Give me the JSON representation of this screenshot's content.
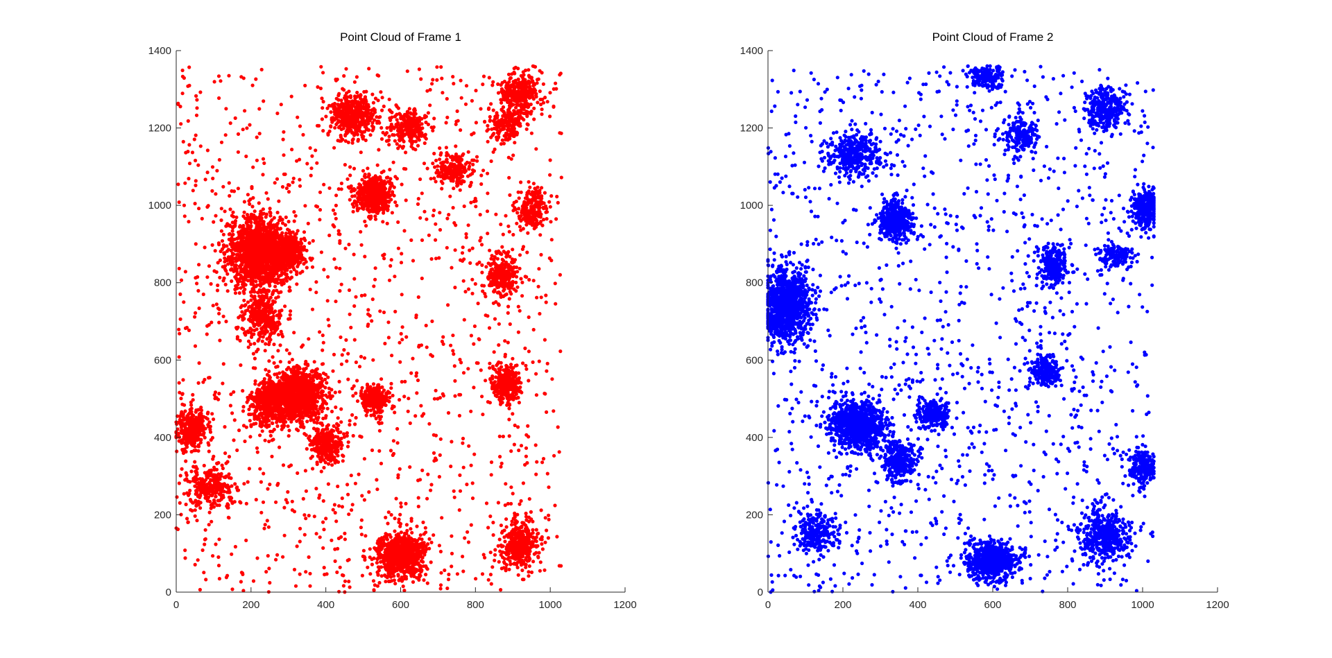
{
  "figure": {
    "background": "#ffffff"
  },
  "chart_data": [
    {
      "type": "scatter",
      "title": "Point Cloud of Frame 1",
      "xlabel": "",
      "ylabel": "",
      "xlim": [
        0,
        1200
      ],
      "ylim": [
        0,
        1400
      ],
      "xticks": [
        0,
        200,
        400,
        600,
        800,
        1000,
        1200
      ],
      "yticks": [
        0,
        200,
        400,
        600,
        800,
        1000,
        1200,
        1400
      ],
      "grid": false,
      "legend": "none",
      "series": [
        {
          "color": "#ff0000",
          "point_extent": {
            "x": [
              0,
              1030
            ],
            "y": [
              0,
              1360
            ]
          },
          "clusters": [
            {
              "center": [
                220,
                880
              ],
              "spread": [
                65,
                75
              ],
              "points": 1400
            },
            {
              "center": [
                300,
                880
              ],
              "spread": [
                35,
                40
              ],
              "points": 400
            },
            {
              "center": [
                330,
                510
              ],
              "spread": [
                60,
                55
              ],
              "points": 1000
            },
            {
              "center": [
                250,
                490
              ],
              "spread": [
                45,
                50
              ],
              "points": 500
            },
            {
              "center": [
                230,
                710
              ],
              "spread": [
                45,
                55
              ],
              "points": 300
            },
            {
              "center": [
                530,
                1030
              ],
              "spread": [
                40,
                40
              ],
              "points": 500
            },
            {
              "center": [
                470,
                1230
              ],
              "spread": [
                55,
                45
              ],
              "points": 450
            },
            {
              "center": [
                600,
                95
              ],
              "spread": [
                55,
                45
              ],
              "points": 750
            },
            {
              "center": [
                530,
                495
              ],
              "spread": [
                35,
                30
              ],
              "points": 250
            },
            {
              "center": [
                880,
                540
              ],
              "spread": [
                35,
                40
              ],
              "points": 300
            },
            {
              "center": [
                920,
                1290
              ],
              "spread": [
                45,
                45
              ],
              "points": 300
            },
            {
              "center": [
                920,
                120
              ],
              "spread": [
                40,
                50
              ],
              "points": 400
            },
            {
              "center": [
                40,
                420
              ],
              "spread": [
                35,
                45
              ],
              "points": 300
            },
            {
              "center": [
                90,
                270
              ],
              "spread": [
                50,
                45
              ],
              "points": 300
            },
            {
              "center": [
                870,
                820
              ],
              "spread": [
                35,
                45
              ],
              "points": 250
            },
            {
              "center": [
                620,
                1200
              ],
              "spread": [
                45,
                40
              ],
              "points": 250
            },
            {
              "center": [
                740,
                1090
              ],
              "spread": [
                40,
                35
              ],
              "points": 200
            },
            {
              "center": [
                400,
                380
              ],
              "spread": [
                35,
                40
              ],
              "points": 300
            },
            {
              "center": [
                950,
                990
              ],
              "spread": [
                35,
                40
              ],
              "points": 200
            },
            {
              "center": [
                880,
                1210
              ],
              "spread": [
                40,
                45
              ],
              "points": 200
            }
          ],
          "scatter_points": 1300
        }
      ]
    },
    {
      "type": "scatter",
      "title": "Point Cloud of Frame 2",
      "xlabel": "",
      "ylabel": "",
      "xlim": [
        0,
        1200
      ],
      "ylim": [
        0,
        1400
      ],
      "xticks": [
        0,
        200,
        400,
        600,
        800,
        1000,
        1200
      ],
      "yticks": [
        0,
        200,
        400,
        600,
        800,
        1000,
        1200,
        1400
      ],
      "grid": false,
      "legend": "none",
      "series": [
        {
          "color": "#0000ff",
          "point_extent": {
            "x": [
              0,
              1030
            ],
            "y": [
              0,
              1360
            ]
          },
          "clusters": [
            {
              "center": [
                50,
                740
              ],
              "spread": [
                50,
                75
              ],
              "points": 1100
            },
            {
              "center": [
                240,
                430
              ],
              "spread": [
                60,
                50
              ],
              "points": 900
            },
            {
              "center": [
                340,
                960
              ],
              "spread": [
                35,
                40
              ],
              "points": 450
            },
            {
              "center": [
                600,
                80
              ],
              "spread": [
                55,
                40
              ],
              "points": 700
            },
            {
              "center": [
                440,
                460
              ],
              "spread": [
                35,
                30
              ],
              "points": 250
            },
            {
              "center": [
                350,
                340
              ],
              "spread": [
                35,
                45
              ],
              "points": 300
            },
            {
              "center": [
                230,
                1130
              ],
              "spread": [
                55,
                45
              ],
              "points": 350
            },
            {
              "center": [
                760,
                850
              ],
              "spread": [
                35,
                45
              ],
              "points": 250
            },
            {
              "center": [
                740,
                570
              ],
              "spread": [
                35,
                35
              ],
              "points": 250
            },
            {
              "center": [
                1010,
                990
              ],
              "spread": [
                30,
                45
              ],
              "points": 300
            },
            {
              "center": [
                900,
                1250
              ],
              "spread": [
                45,
                45
              ],
              "points": 300
            },
            {
              "center": [
                900,
                150
              ],
              "spread": [
                50,
                55
              ],
              "points": 450
            },
            {
              "center": [
                580,
                1330
              ],
              "spread": [
                40,
                25
              ],
              "points": 150
            },
            {
              "center": [
                130,
                150
              ],
              "spread": [
                45,
                45
              ],
              "points": 250
            },
            {
              "center": [
                1000,
                320
              ],
              "spread": [
                30,
                40
              ],
              "points": 200
            },
            {
              "center": [
                680,
                1180
              ],
              "spread": [
                40,
                40
              ],
              "points": 200
            },
            {
              "center": [
                930,
                870
              ],
              "spread": [
                40,
                25
              ],
              "points": 150
            }
          ],
          "scatter_points": 1300
        }
      ]
    }
  ]
}
